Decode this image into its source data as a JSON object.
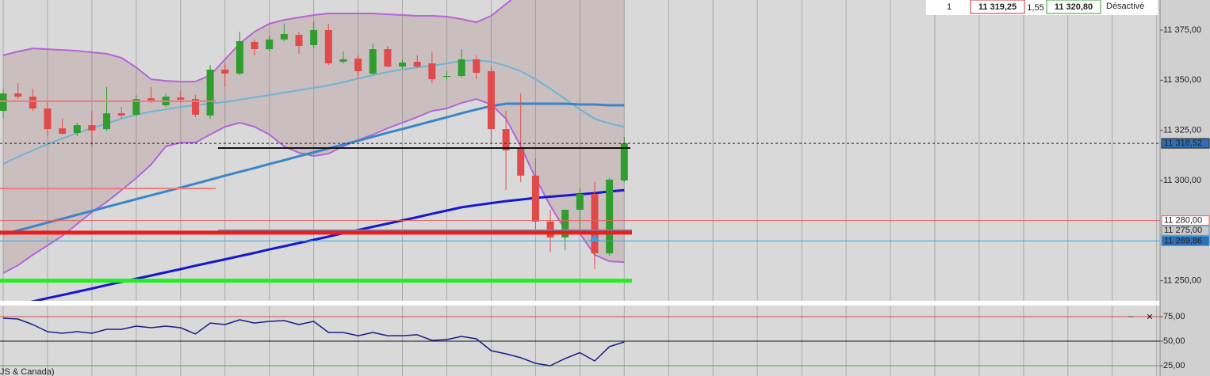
{
  "chart_data": [
    {
      "type": "candlestick",
      "open": [
        11334.7,
        11343.4,
        11341.8,
        11335.9,
        11326.0,
        11323.7,
        11327.6,
        11325.6,
        11333.5,
        11332.8,
        11341.0,
        11337.5,
        11341.4,
        11340.6,
        11332.4,
        11355.3,
        11353.3,
        11369.1,
        11365.5,
        11370.3,
        11372.6,
        11367.5,
        11375.0,
        11359.2,
        11360.8,
        11353.3,
        11365.5,
        11356.8,
        11359.2,
        11358.4,
        11351.7,
        11352.1,
        11360.4,
        11354.5,
        11325.6,
        11316.2,
        11302.4,
        11279.5,
        11271.6,
        11285.4,
        11293.3,
        11263.7,
        11300.0
      ],
      "high": [
        11345.8,
        11348.5,
        11345.8,
        11339.5,
        11330.8,
        11328.8,
        11334.7,
        11346.6,
        11336.7,
        11342.6,
        11346.6,
        11343.4,
        11344.6,
        11342.6,
        11357.6,
        11358.4,
        11374.2,
        11370.3,
        11372.2,
        11378.2,
        11374.2,
        11378.9,
        11378.2,
        11364.3,
        11362.4,
        11368.3,
        11367.1,
        11360.4,
        11362.4,
        11364.3,
        11354.5,
        11365.5,
        11362.4,
        11356.4,
        11334.7,
        11343.4,
        11311.0,
        11285.4,
        11284.2,
        11296.0,
        11299.2,
        11301.2,
        11321.7
      ],
      "low": [
        11330.8,
        11340.6,
        11334.7,
        11322.1,
        11322.9,
        11322.1,
        11317.0,
        11324.9,
        11330.8,
        11332.0,
        11338.7,
        11336.7,
        11338.7,
        11331.6,
        11330.8,
        11346.6,
        11352.5,
        11362.4,
        11364.3,
        11369.5,
        11363.2,
        11366.3,
        11357.6,
        11358.4,
        11350.5,
        11352.5,
        11356.4,
        11355.7,
        11356.0,
        11348.5,
        11350.5,
        11351.3,
        11350.5,
        11318.9,
        11295.2,
        11299.2,
        11275.5,
        11264.4,
        11265.2,
        11273.5,
        11255.8,
        11262.5,
        11299.2
      ],
      "close": [
        11343.4,
        11341.8,
        11335.9,
        11325.6,
        11323.3,
        11327.6,
        11324.9,
        11333.5,
        11332.4,
        11340.6,
        11339.9,
        11341.8,
        11340.3,
        11332.8,
        11355.3,
        11353.3,
        11369.5,
        11365.5,
        11370.3,
        11373.0,
        11367.1,
        11375.0,
        11358.4,
        11360.4,
        11354.5,
        11365.5,
        11356.8,
        11358.8,
        11356.8,
        11350.5,
        11352.1,
        11360.4,
        11353.7,
        11325.6,
        11315.0,
        11302.4,
        11279.5,
        11271.6,
        11285.4,
        11293.3,
        11263.7,
        11300.4,
        11318.52
      ],
      "up_color": "#2f9e2f",
      "down_color": "#e04a4a",
      "band_fill": "rgba(150,95,95,0.22)",
      "series": [
        {
          "color": "#b565d8",
          "width": 2,
          "values": [
            11362.4,
            11364.3,
            11365.9,
            11365.5,
            11365.1,
            11364.7,
            11363.9,
            11363.2,
            11361.2,
            11356.4,
            11350.5,
            11349.7,
            11349.3,
            11349.3,
            11352.5,
            11360.4,
            11368.3,
            11374.2,
            11378.2,
            11380.1,
            11381.3,
            11382.5,
            11383.3,
            11383.3,
            11383.3,
            11383.3,
            11382.9,
            11382.5,
            11382.1,
            11382.1,
            11381.7,
            11380.5,
            11378.9,
            11382.1,
            11388.0,
            11393.9,
            null,
            null,
            null,
            null,
            null,
            null,
            null
          ]
        },
        {
          "color": "#b565d8",
          "width": 2,
          "values": [
            11253.8,
            11257.7,
            11262.9,
            11267.6,
            11272.4,
            11278.3,
            11284.2,
            11289.3,
            11295.2,
            11301.2,
            11307.9,
            11317.0,
            11318.9,
            11318.9,
            11322.9,
            11326.8,
            11328.8,
            11326.8,
            11322.9,
            11317.0,
            11313.8,
            11312.2,
            11313.4,
            11317.0,
            11320.1,
            11322.9,
            11326.0,
            11328.8,
            11331.6,
            11334.7,
            11335.9,
            11338.7,
            11340.6,
            11337.9,
            11330.8,
            11317.0,
            11301.2,
            11287.4,
            11275.5,
            11273.5,
            11262.9,
            11259.7,
            11259.3
          ]
        },
        {
          "color": "#6fb4d4",
          "width": 2,
          "values": [
            11308.3,
            11311.8,
            11315.0,
            11318.1,
            11320.9,
            11323.7,
            11326.0,
            11328.4,
            11330.8,
            11332.8,
            11334.3,
            11335.5,
            11336.7,
            11337.5,
            11338.3,
            11339.1,
            11340.3,
            11341.4,
            11342.6,
            11343.8,
            11345.0,
            11346.2,
            11347.4,
            11349.0,
            11350.9,
            11352.5,
            11354.1,
            11355.3,
            11356.4,
            11357.2,
            11358.4,
            11359.6,
            11360.0,
            11359.2,
            11357.2,
            11354.5,
            11350.5,
            11345.8,
            11340.6,
            11335.5,
            11330.8,
            11328.4,
            11326.8
          ]
        },
        {
          "color": "#3a86c8",
          "width": 3,
          "values": [
            11273.1,
            11275.1,
            11277.0,
            11279.0,
            11280.9,
            11282.9,
            11284.8,
            11286.8,
            11288.7,
            11290.7,
            11292.6,
            11294.5,
            11296.5,
            11298.4,
            11300.4,
            11302.4,
            11304.3,
            11306.2,
            11308.2,
            11310.1,
            11312.1,
            11314.0,
            11316.0,
            11317.9,
            11319.8,
            11321.8,
            11323.8,
            11325.7,
            11327.6,
            11329.6,
            11331.5,
            11333.5,
            11335.4,
            11337.1,
            11338.3,
            11338.3,
            11338.3,
            11338.3,
            11338.3,
            11337.9,
            11337.9,
            11337.5,
            11337.5
          ]
        },
        {
          "color": "#1717cf",
          "width": 3,
          "values": [
            11236.4,
            11238.0,
            11239.7,
            11241.3,
            11242.9,
            11244.5,
            11246.1,
            11247.8,
            11249.4,
            11251.0,
            11252.6,
            11254.2,
            11255.8,
            11257.5,
            11259.1,
            11260.7,
            11262.3,
            11263.9,
            11265.6,
            11267.2,
            11268.8,
            11270.4,
            11272.0,
            11273.7,
            11275.3,
            11276.9,
            11278.5,
            11280.1,
            11281.7,
            11283.4,
            11285.0,
            11286.6,
            11287.7,
            11288.7,
            11289.7,
            11290.5,
            11291.3,
            11291.9,
            11292.5,
            11293.1,
            11293.7,
            11294.5,
            11295.2
          ]
        }
      ],
      "levels": [
        {
          "value": 11318.52,
          "color": "#222222",
          "width": 1,
          "dashed": true,
          "label": "11 318,52",
          "label_bg": "#2f6fb8",
          "label_color": "#ffffff"
        },
        {
          "value": 11280,
          "color": "#e06060",
          "width": 1,
          "label": "11 280,00",
          "label_bg": "#ffffff",
          "label_color": "#222222"
        },
        {
          "value": 11275,
          "color": "#6f8fb0",
          "width": 3,
          "label": "11 275,00",
          "label_bg": "#c8c8c8",
          "label_color": "#222222"
        },
        {
          "value": 11269.86,
          "color": "#3aa0e0",
          "width": 1,
          "label": "11 269,86",
          "label_bg": "#2f6fb8",
          "label_color": "#ffffff"
        },
        {
          "value": 11274,
          "color": "#ee1c1c",
          "width": 5
        },
        {
          "value": 11250,
          "color": "#22ee22",
          "width": 5
        },
        {
          "value": 11316.2,
          "color": "#111111",
          "width": 2
        },
        {
          "value": 11339.5,
          "color": "#f07a7a",
          "width": 2
        },
        {
          "value": 11296,
          "color": "#f07a7a",
          "width": 2
        }
      ],
      "ylim": [
        11240,
        11390
      ],
      "yticks": [
        {
          "value": 11250,
          "label": "11 250,00"
        },
        {
          "value": 11300,
          "label": "11 300,00"
        },
        {
          "value": 11325,
          "label": "11 325,00"
        },
        {
          "value": 11350,
          "label": "11 350,00"
        },
        {
          "value": 11375,
          "label": "11 375,00"
        }
      ]
    },
    {
      "type": "line",
      "series": [
        {
          "color": "#1c1c8a",
          "width": 1.5,
          "values": [
            73.4,
            72.6,
            66.9,
            59.7,
            58.1,
            59.7,
            58.1,
            62.1,
            62.1,
            65.3,
            63.7,
            65.3,
            63.7,
            57.3,
            68.5,
            66.9,
            71.8,
            68.5,
            70.2,
            71.0,
            66.9,
            70.2,
            58.9,
            58.9,
            55.6,
            58.9,
            55.6,
            55.6,
            56.5,
            50.8,
            51.6,
            54.8,
            52.4,
            40.3,
            37.1,
            33.1,
            27.4,
            25.0,
            32.3,
            38.3,
            29.8,
            44.4,
            49.2
          ]
        }
      ],
      "ylim": [
        14.5,
        86.3
      ],
      "yticks": [
        {
          "value": 25,
          "label": "25,00"
        },
        {
          "value": 50,
          "label": "50,00"
        },
        {
          "value": 75,
          "label": "75,00"
        }
      ],
      "grid_colors": [
        "#4fa84f",
        "#111111",
        "#d85050"
      ]
    }
  ],
  "toolbar": {
    "quantity": "1",
    "bid": "11 319,25",
    "spread": "1,55",
    "ask": "11 320,80",
    "status": "Désactivé"
  },
  "footer": {
    "timezone": "JS & Canada)"
  }
}
